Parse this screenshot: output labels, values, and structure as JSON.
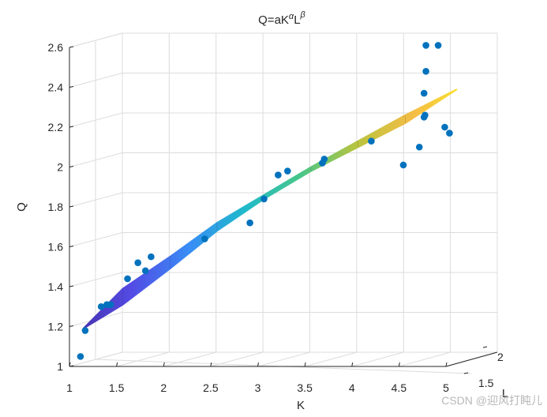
{
  "chart_data": {
    "type": "scatter",
    "title": "Q=aK",
    "title_sup_alpha": "α",
    "title_mid": "L",
    "title_sup_beta": "β",
    "xlabel": "K",
    "ylabel": "L",
    "zlabel": "Q",
    "xlim": [
      1,
      5
    ],
    "ylim": [
      1,
      2
    ],
    "zlim": [
      1,
      2.6
    ],
    "xticks": [
      "1",
      "1.5",
      "2",
      "2.5",
      "3",
      "3.5",
      "4",
      "4.5",
      "5"
    ],
    "yticks": [
      "1.5",
      "2"
    ],
    "zticks": [
      "1",
      "1.2",
      "1.4",
      "1.6",
      "1.8",
      "2",
      "2.2",
      "2.4",
      "2.6"
    ],
    "grid": true,
    "series": [
      {
        "marker_color": "#0072bd",
        "points": [
          {
            "k": 1.05,
            "q": 1.05
          },
          {
            "k": 1.1,
            "q": 1.18
          },
          {
            "k": 1.27,
            "q": 1.3
          },
          {
            "k": 1.33,
            "q": 1.31
          },
          {
            "k": 1.37,
            "q": 1.31
          },
          {
            "k": 1.55,
            "q": 1.44
          },
          {
            "k": 1.66,
            "q": 1.52
          },
          {
            "k": 1.74,
            "q": 1.48
          },
          {
            "k": 1.8,
            "q": 1.55
          },
          {
            "k": 2.37,
            "q": 1.64
          },
          {
            "k": 2.85,
            "q": 1.72
          },
          {
            "k": 3.0,
            "q": 1.84
          },
          {
            "k": 3.15,
            "q": 1.96
          },
          {
            "k": 3.25,
            "q": 1.98
          },
          {
            "k": 3.62,
            "q": 2.02
          },
          {
            "k": 3.64,
            "q": 2.04
          },
          {
            "k": 4.14,
            "q": 2.13
          },
          {
            "k": 4.48,
            "q": 2.01
          },
          {
            "k": 4.65,
            "q": 2.1
          },
          {
            "k": 4.7,
            "q": 2.25
          },
          {
            "k": 4.7,
            "q": 2.37
          },
          {
            "k": 4.71,
            "q": 2.26
          },
          {
            "k": 4.72,
            "q": 2.48
          },
          {
            "k": 4.72,
            "q": 2.61
          },
          {
            "k": 4.85,
            "q": 2.61
          },
          {
            "k": 4.92,
            "q": 2.2
          },
          {
            "k": 4.97,
            "q": 2.17
          }
        ]
      }
    ],
    "surface": {
      "colormap": [
        "#3e26a8",
        "#4a42e3",
        "#2f86f6",
        "#14b6c9",
        "#3fc483",
        "#b6c135",
        "#f5ba3c",
        "#f9e71e"
      ],
      "ridge": [
        [
          1.08,
          1.19
        ],
        [
          1.5,
          1.39
        ],
        [
          2.0,
          1.55
        ],
        [
          2.5,
          1.72
        ],
        [
          3.0,
          1.86
        ],
        [
          3.5,
          2.0
        ],
        [
          4.0,
          2.13
        ],
        [
          4.5,
          2.26
        ],
        [
          5.05,
          2.39
        ]
      ],
      "lower": [
        [
          1.08,
          1.19
        ],
        [
          1.5,
          1.31
        ],
        [
          2.0,
          1.49
        ],
        [
          2.5,
          1.68
        ],
        [
          3.0,
          1.84
        ],
        [
          3.5,
          1.98
        ],
        [
          4.0,
          2.1
        ],
        [
          4.5,
          2.22
        ],
        [
          5.05,
          2.39
        ]
      ]
    }
  },
  "watermark": "CSDN @迎风打盹儿"
}
